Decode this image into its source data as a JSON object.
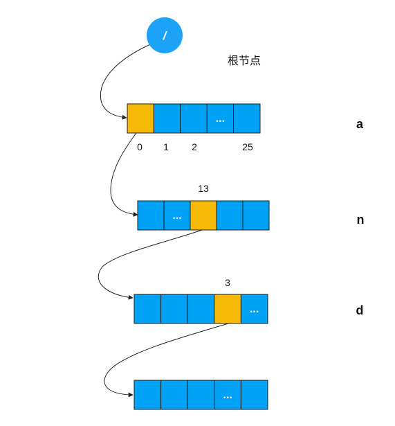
{
  "root": {
    "symbol": "/",
    "label": "根节点"
  },
  "colors": {
    "cell": "#00A2F5",
    "highlight": "#F7BA07",
    "root_circle": "#1CA3F7",
    "border": "#1c1c1c",
    "edge": "#222222",
    "text": "#111111",
    "ellipsis_text": "#ffffff"
  },
  "levels": [
    {
      "letter": "a",
      "cells": [
        "",
        "",
        "",
        "...",
        ""
      ],
      "highlight_index": 0,
      "index_labels": [
        "0",
        "1",
        "2",
        "25"
      ]
    },
    {
      "letter": "n",
      "cells": [
        "",
        "...",
        "",
        "",
        ""
      ],
      "highlight_index": 2,
      "index_labels": [
        "13"
      ]
    },
    {
      "letter": "d",
      "cells": [
        "",
        "",
        "",
        "",
        "..."
      ],
      "highlight_index": 3,
      "index_labels": [
        "3"
      ]
    },
    {
      "letter": "",
      "cells": [
        "",
        "",
        "",
        "...",
        ""
      ],
      "highlight_index": null,
      "index_labels": []
    }
  ]
}
